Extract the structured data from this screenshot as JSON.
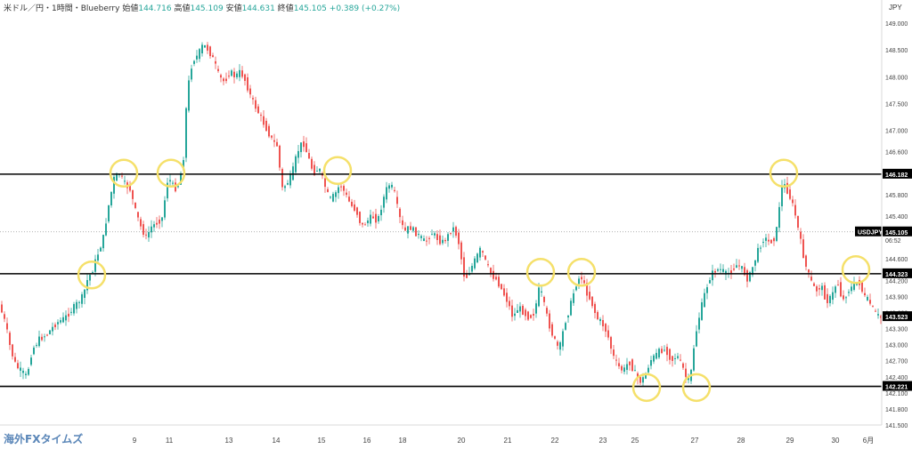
{
  "header": {
    "symbol": "米ドル／円・1時間・Blueberry",
    "open_label": "始値",
    "open": "144.716",
    "high_label": "高値",
    "high": "145.109",
    "low_label": "安値",
    "low": "144.631",
    "close_label": "終値",
    "close": "145.105",
    "change": "+0.389 (+0.27%)"
  },
  "unit_label": "JPY",
  "watermark": "海外FXタイムズ",
  "colors": {
    "up": "#26a69a",
    "down": "#ef5350",
    "line": "#000000",
    "circle": "#f5e06a",
    "badge": "#000000"
  },
  "chart_data": {
    "type": "candlestick",
    "title": "",
    "xlabel": "",
    "ylabel": "",
    "ylim": [
      141.5,
      149.2
    ],
    "yticks": [
      "149.000",
      "148.500",
      "148.000",
      "147.500",
      "147.000",
      "146.600",
      "146.182",
      "145.800",
      "145.400",
      "145.105",
      "144.600",
      "144.323",
      "144.200",
      "143.900",
      "143.600",
      "143.523",
      "143.300",
      "143.000",
      "142.700",
      "142.400",
      "142.221",
      "142.100",
      "141.800",
      "141.500"
    ],
    "xticks": [
      "9",
      "11",
      "13",
      "14",
      "15",
      "16",
      "18",
      "20",
      "21",
      "22",
      "23",
      "25",
      "27",
      "28",
      "29",
      "30",
      "6月"
    ],
    "horizontal_lines": [
      146.182,
      144.323,
      142.221
    ],
    "price_labels": [
      {
        "text": "146.182",
        "value": 146.182
      },
      {
        "text": "USDJPY",
        "value": 145.105,
        "sub": "06:52"
      },
      {
        "text": "145.105",
        "value": 145.105
      },
      {
        "text": "144.323",
        "value": 144.323
      },
      {
        "text": "143.523",
        "value": 143.523
      },
      {
        "text": "142.221",
        "value": 142.221
      }
    ],
    "current_price": 145.105,
    "circles": [
      {
        "x": "9-",
        "y": 144.3
      },
      {
        "x": "9",
        "y": 146.2
      },
      {
        "x": "11",
        "y": 146.2
      },
      {
        "x": "15",
        "y": 146.25
      },
      {
        "x": "21",
        "y": 144.35
      },
      {
        "x": "22",
        "y": 144.35
      },
      {
        "x": "25",
        "y": 142.2
      },
      {
        "x": "27",
        "y": 142.2
      },
      {
        "x": "29",
        "y": 146.2
      },
      {
        "x": "30",
        "y": 144.4
      }
    ],
    "path": [
      [
        0,
        143.8
      ],
      [
        8,
        143.4
      ],
      [
        14,
        142.9
      ],
      [
        20,
        142.6
      ],
      [
        26,
        142.5
      ],
      [
        32,
        142.4
      ],
      [
        38,
        142.9
      ],
      [
        46,
        143.1
      ],
      [
        55,
        143.2
      ],
      [
        65,
        143.4
      ],
      [
        75,
        143.5
      ],
      [
        85,
        143.7
      ],
      [
        95,
        143.9
      ],
      [
        100,
        144.2
      ],
      [
        106,
        144.4
      ],
      [
        112,
        144.7
      ],
      [
        118,
        145.0
      ],
      [
        124,
        145.6
      ],
      [
        130,
        146.1
      ],
      [
        136,
        146.2
      ],
      [
        142,
        146.0
      ],
      [
        148,
        145.9
      ],
      [
        154,
        145.5
      ],
      [
        160,
        145.2
      ],
      [
        166,
        145.0
      ],
      [
        172,
        145.2
      ],
      [
        180,
        145.3
      ],
      [
        186,
        145.4
      ],
      [
        188,
        146.0
      ],
      [
        192,
        146.1
      ],
      [
        198,
        145.9
      ],
      [
        203,
        146.0
      ],
      [
        208,
        146.5
      ],
      [
        212,
        147.7
      ],
      [
        218,
        148.3
      ],
      [
        224,
        148.4
      ],
      [
        230,
        148.6
      ],
      [
        236,
        148.5
      ],
      [
        242,
        148.3
      ],
      [
        248,
        148.0
      ],
      [
        254,
        147.9
      ],
      [
        260,
        148.1
      ],
      [
        266,
        148.0
      ],
      [
        272,
        148.1
      ],
      [
        278,
        147.9
      ],
      [
        284,
        147.6
      ],
      [
        290,
        147.4
      ],
      [
        296,
        147.2
      ],
      [
        302,
        147.0
      ],
      [
        308,
        146.8
      ],
      [
        314,
        146.7
      ],
      [
        318,
        145.9
      ],
      [
        324,
        146.0
      ],
      [
        330,
        146.2
      ],
      [
        336,
        146.6
      ],
      [
        342,
        146.8
      ],
      [
        348,
        146.5
      ],
      [
        354,
        146.2
      ],
      [
        360,
        146.3
      ],
      [
        366,
        146.0
      ],
      [
        372,
        145.7
      ],
      [
        378,
        145.8
      ],
      [
        384,
        146.0
      ],
      [
        390,
        145.8
      ],
      [
        396,
        145.6
      ],
      [
        402,
        145.5
      ],
      [
        408,
        145.2
      ],
      [
        414,
        145.3
      ],
      [
        420,
        145.4
      ],
      [
        426,
        145.3
      ],
      [
        432,
        145.7
      ],
      [
        438,
        146.0
      ],
      [
        444,
        145.9
      ],
      [
        450,
        145.4
      ],
      [
        456,
        145.1
      ],
      [
        462,
        145.2
      ],
      [
        468,
        145.1
      ],
      [
        474,
        145.0
      ],
      [
        480,
        144.9
      ],
      [
        486,
        145.1
      ],
      [
        492,
        145.0
      ],
      [
        498,
        144.9
      ],
      [
        504,
        145.0
      ],
      [
        510,
        145.2
      ],
      [
        516,
        145.0
      ],
      [
        520,
        144.6
      ],
      [
        524,
        144.2
      ],
      [
        530,
        144.4
      ],
      [
        536,
        144.6
      ],
      [
        542,
        144.8
      ],
      [
        548,
        144.5
      ],
      [
        554,
        144.3
      ],
      [
        560,
        144.2
      ],
      [
        566,
        144.0
      ],
      [
        572,
        143.8
      ],
      [
        578,
        143.5
      ],
      [
        584,
        143.7
      ],
      [
        590,
        143.6
      ],
      [
        596,
        143.5
      ],
      [
        602,
        143.6
      ],
      [
        608,
        144.1
      ],
      [
        612,
        143.8
      ],
      [
        618,
        143.4
      ],
      [
        624,
        143.1
      ],
      [
        630,
        142.9
      ],
      [
        636,
        143.4
      ],
      [
        642,
        143.7
      ],
      [
        648,
        144.1
      ],
      [
        654,
        144.3
      ],
      [
        660,
        144.0
      ],
      [
        666,
        143.8
      ],
      [
        672,
        143.5
      ],
      [
        678,
        143.4
      ],
      [
        684,
        143.2
      ],
      [
        690,
        142.8
      ],
      [
        696,
        142.6
      ],
      [
        702,
        142.5
      ],
      [
        708,
        142.7
      ],
      [
        714,
        142.5
      ],
      [
        720,
        142.3
      ],
      [
        726,
        142.4
      ],
      [
        732,
        142.7
      ],
      [
        738,
        142.8
      ],
      [
        744,
        142.9
      ],
      [
        750,
        142.9
      ],
      [
        756,
        142.7
      ],
      [
        762,
        142.8
      ],
      [
        768,
        142.6
      ],
      [
        774,
        142.3
      ],
      [
        778,
        142.5
      ],
      [
        782,
        143.1
      ],
      [
        788,
        143.6
      ],
      [
        794,
        144.0
      ],
      [
        800,
        144.3
      ],
      [
        806,
        144.4
      ],
      [
        812,
        144.4
      ],
      [
        818,
        144.3
      ],
      [
        824,
        144.4
      ],
      [
        830,
        144.5
      ],
      [
        836,
        144.4
      ],
      [
        842,
        144.2
      ],
      [
        848,
        144.5
      ],
      [
        854,
        144.8
      ],
      [
        860,
        145.0
      ],
      [
        866,
        144.9
      ],
      [
        872,
        145.0
      ],
      [
        876,
        145.3
      ],
      [
        878,
        145.9
      ],
      [
        882,
        146.0
      ],
      [
        888,
        145.8
      ],
      [
        894,
        145.5
      ],
      [
        900,
        145.0
      ],
      [
        906,
        144.5
      ],
      [
        912,
        144.2
      ],
      [
        918,
        144.0
      ],
      [
        924,
        144.1
      ],
      [
        930,
        143.8
      ],
      [
        936,
        143.9
      ],
      [
        942,
        144.2
      ],
      [
        948,
        143.8
      ],
      [
        954,
        144.0
      ],
      [
        960,
        144.1
      ],
      [
        966,
        144.2
      ],
      [
        972,
        143.9
      ],
      [
        978,
        143.8
      ],
      [
        984,
        143.6
      ],
      [
        990,
        143.5
      ]
    ]
  }
}
